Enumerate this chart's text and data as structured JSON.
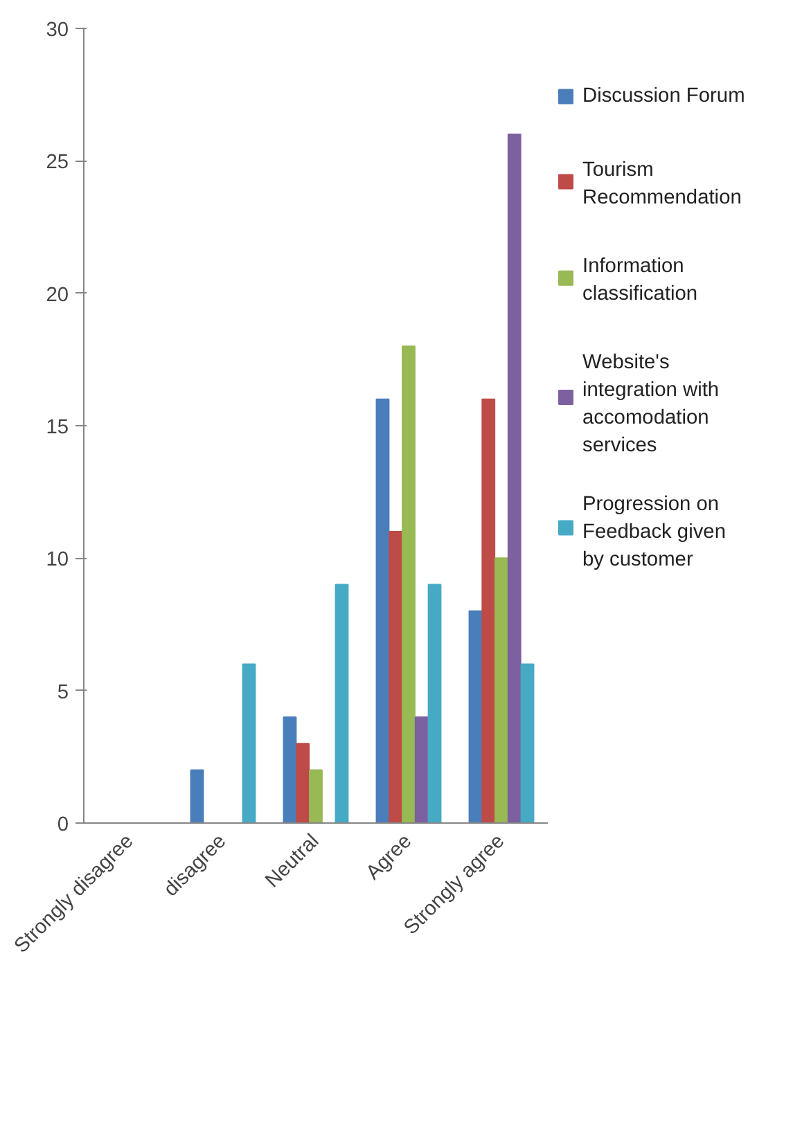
{
  "chart_data": {
    "type": "bar",
    "categories": [
      "Strongly disagree",
      "disagree",
      "Neutral",
      "Agree",
      "Strongly agree"
    ],
    "series": [
      {
        "name": "Discussion Forum",
        "color": "#4a7ebb",
        "values": [
          0,
          2,
          4,
          16,
          8
        ]
      },
      {
        "name": "Tourism Recommendation",
        "color": "#be4b48",
        "values": [
          0,
          0,
          3,
          11,
          16
        ]
      },
      {
        "name": "Information classification",
        "color": "#98b954",
        "values": [
          0,
          0,
          2,
          18,
          10
        ]
      },
      {
        "name": "Website's integration with accomodation services",
        "color": "#7d60a0",
        "values": [
          0,
          0,
          0,
          4,
          26
        ]
      },
      {
        "name": "Progression on Feedback given by customer",
        "color": "#46aac5",
        "values": [
          0,
          6,
          9,
          9,
          6
        ]
      }
    ],
    "ylim": [
      0,
      30
    ],
    "yticks": [
      0,
      5,
      10,
      15,
      20,
      25,
      30
    ],
    "grid": false,
    "legend": "right"
  }
}
